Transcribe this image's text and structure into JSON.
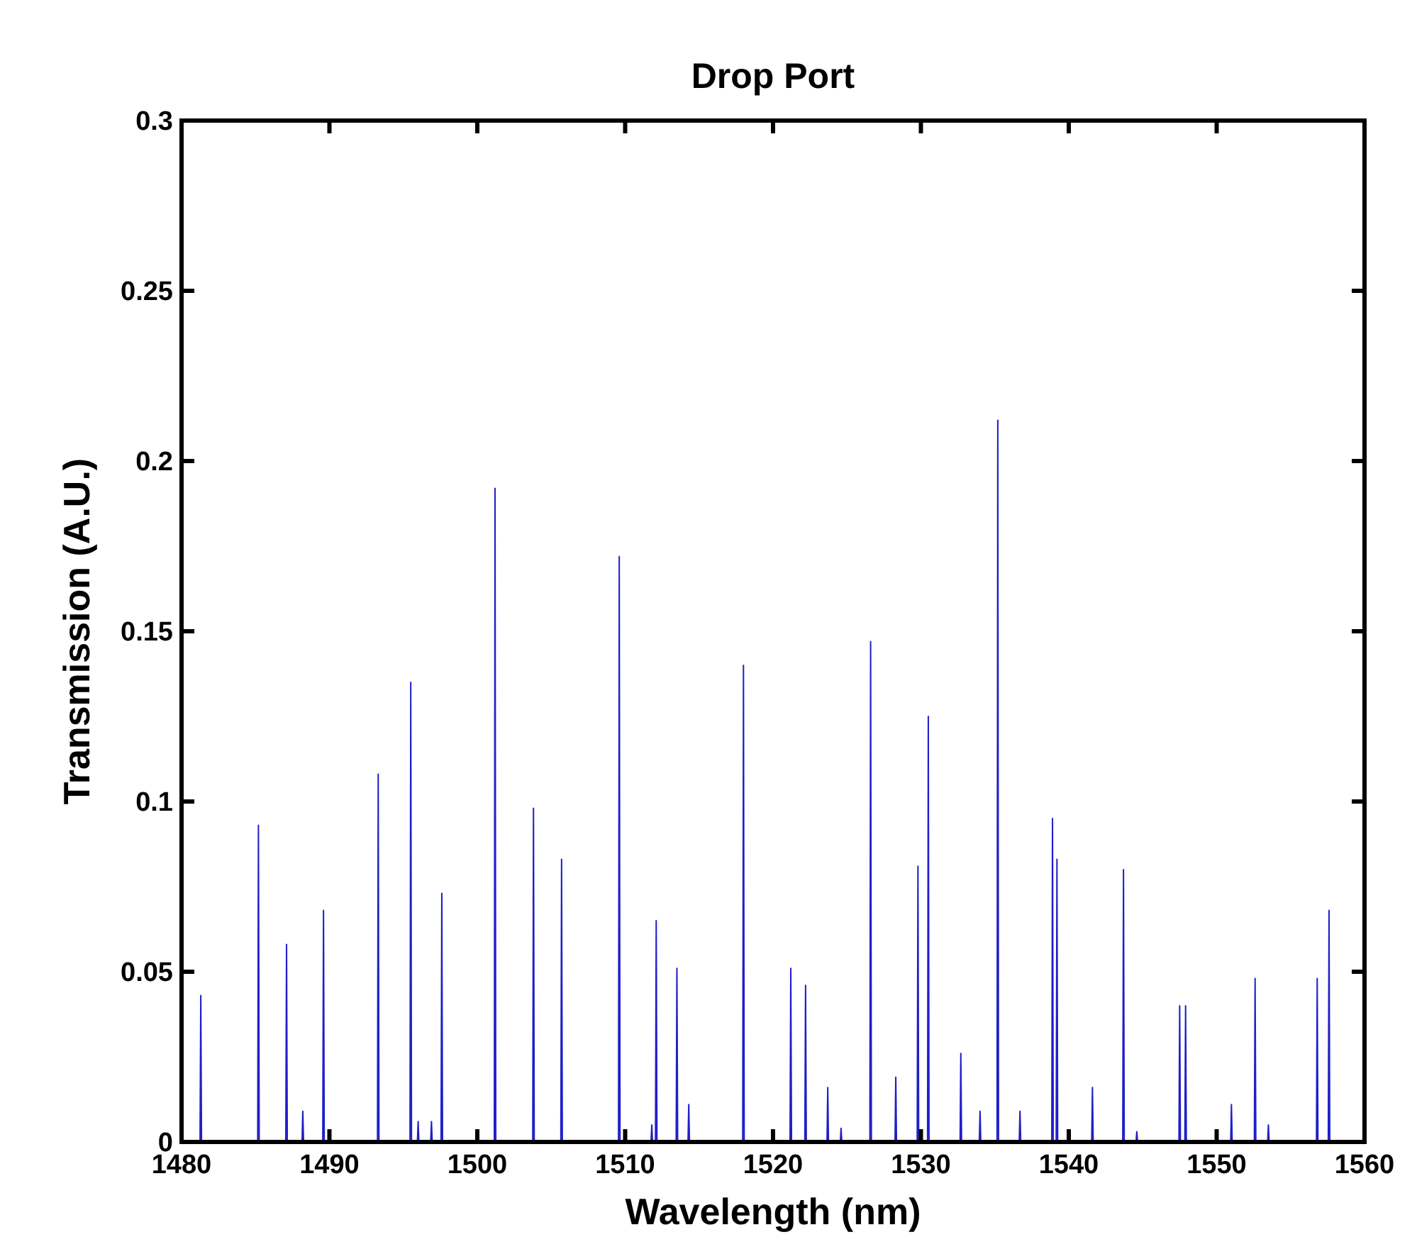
{
  "chart_data": {
    "type": "line",
    "title": "Drop Port",
    "xlabel": "Wavelength (nm)",
    "ylabel": "Transmission (A.U.)",
    "xlim": [
      1480,
      1560
    ],
    "xticks": [
      1480,
      1490,
      1500,
      1510,
      1520,
      1530,
      1540,
      1550,
      1560
    ],
    "ylim": [
      0,
      0.3
    ],
    "yticks": [
      0,
      0.05,
      0.1,
      0.15,
      0.2,
      0.25,
      0.3
    ],
    "grid": false,
    "marker": "none",
    "line_style": "solid",
    "series": [
      {
        "color": "#1f1fc8",
        "x": [
          1481.25,
          1481.3,
          1481.35,
          1485.15,
          1485.2,
          1485.25,
          1487.05,
          1487.1,
          1487.15,
          1488.15,
          1488.2,
          1488.25,
          1489.55,
          1489.6,
          1489.65,
          1493.25,
          1493.3,
          1493.35,
          1495.45,
          1495.5,
          1495.55,
          1495.95,
          1496,
          1496.05,
          1496.85,
          1496.9,
          1496.95,
          1497.55,
          1497.6,
          1497.65,
          1501.15,
          1501.2,
          1501.25,
          1503.75,
          1503.8,
          1503.85,
          1505.65,
          1505.7,
          1505.75,
          1509.55,
          1509.6,
          1509.65,
          1511.75,
          1511.8,
          1511.85,
          1512.05,
          1512.1,
          1512.15,
          1513.45,
          1513.5,
          1513.55,
          1514.25,
          1514.3,
          1514.35,
          1517.95,
          1518,
          1518.05,
          1521.15,
          1521.2,
          1521.25,
          1522.15,
          1522.2,
          1522.25,
          1523.65,
          1523.7,
          1523.75,
          1524.55,
          1524.6,
          1524.65,
          1526.55,
          1526.6,
          1526.65,
          1528.25,
          1528.3,
          1528.35,
          1529.75,
          1529.8,
          1529.85,
          1530.45,
          1530.5,
          1530.55,
          1532.65,
          1532.7,
          1532.75,
          1533.95,
          1534,
          1534.05,
          1535.15,
          1535.2,
          1535.25,
          1536.65,
          1536.7,
          1536.75,
          1538.85,
          1538.9,
          1538.95,
          1539.15,
          1539.2,
          1539.25,
          1541.55,
          1541.6,
          1541.65,
          1543.65,
          1543.7,
          1543.75,
          1544.55,
          1544.6,
          1544.65,
          1547.45,
          1547.5,
          1547.55,
          1547.85,
          1547.9,
          1547.95,
          1550.95,
          1551,
          1551.05,
          1552.55,
          1552.6,
          1552.65,
          1553.45,
          1553.5,
          1553.55,
          1556.75,
          1556.8,
          1556.85,
          1557.55,
          1557.6,
          1557.65
        ],
        "values": [
          0,
          0.043,
          0,
          0,
          0.093,
          0,
          0,
          0.058,
          0,
          0,
          0.009,
          0,
          0,
          0.068,
          0,
          0,
          0.108,
          0,
          0,
          0.135,
          0,
          0,
          0.006,
          0,
          0,
          0.006,
          0,
          0,
          0.073,
          0,
          0,
          0.192,
          0,
          0,
          0.098,
          0,
          0,
          0.083,
          0,
          0,
          0.172,
          0,
          0,
          0.005,
          0,
          0,
          0.065,
          0,
          0,
          0.051,
          0,
          0,
          0.011,
          0,
          0,
          0.14,
          0,
          0,
          0.051,
          0,
          0,
          0.046,
          0,
          0,
          0.016,
          0,
          0,
          0.004,
          0,
          0,
          0.147,
          0,
          0,
          0.019,
          0,
          0,
          0.081,
          0,
          0,
          0.125,
          0,
          0,
          0.026,
          0,
          0,
          0.009,
          0,
          0,
          0.212,
          0,
          0,
          0.009,
          0,
          0,
          0.095,
          0,
          0,
          0.083,
          0,
          0,
          0.016,
          0,
          0,
          0.08,
          0,
          0,
          0.003,
          0,
          0,
          0.04,
          0,
          0,
          0.04,
          0,
          0,
          0.011,
          0,
          0,
          0.048,
          0,
          0,
          0.005,
          0,
          0,
          0.048,
          0,
          0,
          0.068,
          0
        ]
      }
    ]
  }
}
